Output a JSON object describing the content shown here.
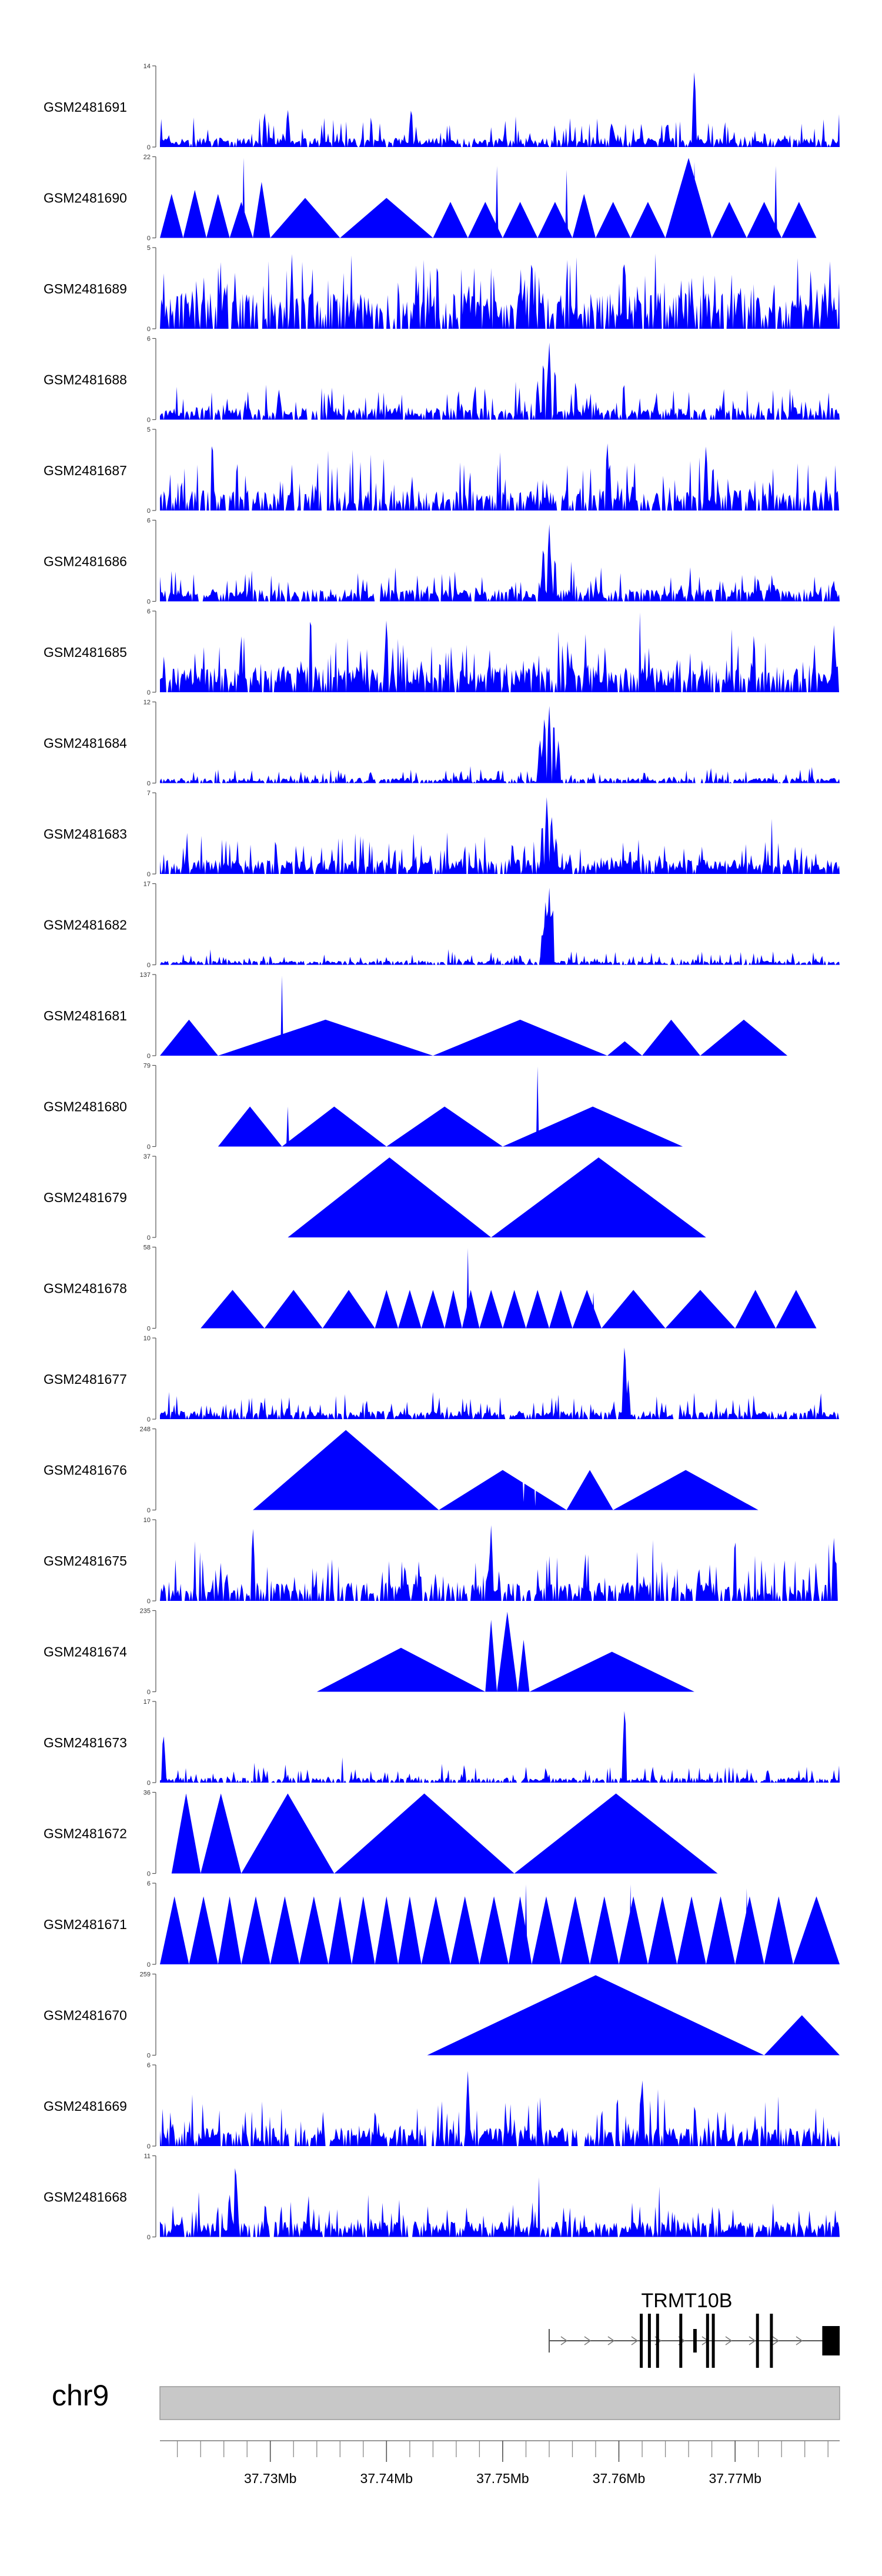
{
  "chart_data": {
    "type": "area",
    "title": "",
    "region": {
      "chromosome": "chr9",
      "start": 37.7205,
      "end": 37.779,
      "unit": "Mb"
    },
    "axis": {
      "ticks": [
        37.73,
        37.74,
        37.75,
        37.76,
        37.77
      ],
      "tick_labels": [
        "37.73Mb",
        "37.74Mb",
        "37.75Mb",
        "37.76Mb",
        "37.77Mb"
      ],
      "minor_step": 0.002
    },
    "tracks": [
      {
        "name": "GSM2481691",
        "ymax": 14,
        "ymax_label": "14",
        "ymin_label": "0",
        "style": "noise",
        "base": 0.09,
        "amp": 0.3,
        "density": 0.85,
        "peaks": [
          [
            37.7665,
            1.0
          ],
          [
            37.7295,
            0.45
          ],
          [
            37.7315,
            0.5
          ]
        ]
      },
      {
        "name": "GSM2481690",
        "ymax": 22,
        "ymax_label": "22",
        "ymin_label": "0",
        "style": "tri",
        "segments": [
          [
            37.7205,
            37.7225,
            0.55
          ],
          [
            37.7225,
            37.7245,
            0.6
          ],
          [
            37.7245,
            37.7265,
            0.55
          ],
          [
            37.7265,
            37.7285,
            0.45
          ],
          [
            37.7285,
            37.73,
            0.7
          ],
          [
            37.73,
            37.736,
            0.5
          ],
          [
            37.736,
            37.744,
            0.5
          ],
          [
            37.744,
            37.747,
            0.45
          ],
          [
            37.747,
            37.75,
            0.45
          ],
          [
            37.75,
            37.753,
            0.45
          ],
          [
            37.753,
            37.756,
            0.45
          ],
          [
            37.756,
            37.758,
            0.55
          ],
          [
            37.758,
            37.761,
            0.45
          ],
          [
            37.761,
            37.764,
            0.45
          ],
          [
            37.764,
            37.768,
            1.0
          ],
          [
            37.768,
            37.771,
            0.45
          ],
          [
            37.771,
            37.774,
            0.45
          ],
          [
            37.774,
            37.777,
            0.45
          ]
        ],
        "spikes": [
          [
            37.7277,
            1.0
          ],
          [
            37.7495,
            0.9
          ],
          [
            37.7555,
            0.85
          ],
          [
            37.7665,
            0.95
          ],
          [
            37.7735,
            0.9
          ]
        ]
      },
      {
        "name": "GSM2481689",
        "ymax": 5,
        "ymax_label": "5",
        "ymin_label": "0",
        "style": "noise",
        "base": 0.35,
        "amp": 0.55,
        "density": 0.75,
        "peaks": [
          [
            37.7525,
            0.95
          ],
          [
            37.7605,
            0.9
          ]
        ]
      },
      {
        "name": "GSM2481688",
        "ymax": 6,
        "ymax_label": "6",
        "ymin_label": "0",
        "style": "noise",
        "base": 0.12,
        "amp": 0.32,
        "density": 0.8,
        "peaks": [
          [
            37.754,
            1.0
          ],
          [
            37.7535,
            0.8
          ],
          [
            37.7545,
            0.7
          ],
          [
            37.753,
            0.5
          ]
        ]
      },
      {
        "name": "GSM2481687",
        "ymax": 5,
        "ymax_label": "5",
        "ymin_label": "0",
        "style": "noise",
        "base": 0.2,
        "amp": 0.5,
        "density": 0.7,
        "peaks": [
          [
            37.725,
            0.95
          ],
          [
            37.759,
            0.9
          ],
          [
            37.7675,
            0.85
          ]
        ]
      },
      {
        "name": "GSM2481686",
        "ymax": 6,
        "ymax_label": "6",
        "ymin_label": "0",
        "style": "noise",
        "base": 0.12,
        "amp": 0.3,
        "density": 0.8,
        "peaks": [
          [
            37.754,
            1.0
          ],
          [
            37.7535,
            0.75
          ],
          [
            37.7545,
            0.6
          ]
        ]
      },
      {
        "name": "GSM2481685",
        "ymax": 6,
        "ymax_label": "6",
        "ymin_label": "0",
        "style": "noise",
        "base": 0.25,
        "amp": 0.5,
        "density": 0.8,
        "peaks": [
          [
            37.74,
            0.95
          ],
          [
            37.7785,
            0.85
          ]
        ]
      },
      {
        "name": "GSM2481684",
        "ymax": 12,
        "ymax_label": "12",
        "ymin_label": "0",
        "style": "noise",
        "base": 0.05,
        "amp": 0.15,
        "density": 0.8,
        "peaks": [
          [
            37.754,
            1.0
          ],
          [
            37.7536,
            0.9
          ],
          [
            37.7544,
            0.85
          ],
          [
            37.7532,
            0.6
          ],
          [
            37.7548,
            0.55
          ]
        ]
      },
      {
        "name": "GSM2481683",
        "ymax": 7,
        "ymax_label": "7",
        "ymin_label": "0",
        "style": "noise",
        "base": 0.14,
        "amp": 0.35,
        "density": 0.85,
        "peaks": [
          [
            37.7538,
            1.0
          ],
          [
            37.7542,
            0.8
          ],
          [
            37.7534,
            0.7
          ],
          [
            37.7546,
            0.5
          ]
        ]
      },
      {
        "name": "GSM2481682",
        "ymax": 17,
        "ymax_label": "17",
        "ymin_label": "0",
        "style": "noise",
        "base": 0.04,
        "amp": 0.12,
        "density": 0.8,
        "peaks": [
          [
            37.754,
            1.0
          ],
          [
            37.7537,
            0.85
          ],
          [
            37.7543,
            0.8
          ],
          [
            37.7534,
            0.45
          ]
        ]
      },
      {
        "name": "GSM2481681",
        "ymax": 137,
        "ymax_label": "137",
        "ymin_label": "0",
        "style": "tri",
        "segments": [
          [
            37.7205,
            37.7255,
            0.45
          ],
          [
            37.7255,
            37.744,
            0.45
          ],
          [
            37.744,
            37.759,
            0.45
          ],
          [
            37.759,
            37.762,
            0.18
          ],
          [
            37.762,
            37.767,
            0.45
          ],
          [
            37.767,
            37.7745,
            0.45
          ]
        ],
        "spikes": [
          [
            37.731,
            1.0
          ]
        ]
      },
      {
        "name": "GSM2481680",
        "ymax": 79,
        "ymax_label": "79",
        "ymin_label": "0",
        "style": "tri",
        "segments": [
          [
            37.7255,
            37.731,
            0.5
          ],
          [
            37.731,
            37.74,
            0.5
          ],
          [
            37.74,
            37.75,
            0.5
          ],
          [
            37.75,
            37.7655,
            0.5
          ]
        ],
        "spikes": [
          [
            37.7315,
            0.5
          ],
          [
            37.753,
            1.0
          ]
        ],
        "notches": [
          [
            37.731,
            0.1
          ]
        ]
      },
      {
        "name": "GSM2481679",
        "ymax": 37,
        "ymax_label": "37",
        "ymin_label": "0",
        "style": "tri",
        "segments": [
          [
            37.7315,
            37.749,
            1.0
          ],
          [
            37.749,
            37.7675,
            1.0
          ]
        ]
      },
      {
        "name": "GSM2481678",
        "ymax": 58,
        "ymax_label": "58",
        "ymin_label": "0",
        "style": "tri",
        "segments": [
          [
            37.724,
            37.7295,
            0.48
          ],
          [
            37.7295,
            37.7345,
            0.48
          ],
          [
            37.7345,
            37.739,
            0.48
          ],
          [
            37.739,
            37.741,
            0.48
          ],
          [
            37.741,
            37.743,
            0.48
          ],
          [
            37.743,
            37.745,
            0.48
          ],
          [
            37.745,
            37.7465,
            0.48
          ],
          [
            37.7465,
            37.748,
            0.48
          ],
          [
            37.748,
            37.75,
            0.48
          ],
          [
            37.75,
            37.752,
            0.48
          ],
          [
            37.752,
            37.754,
            0.48
          ],
          [
            37.754,
            37.756,
            0.48
          ],
          [
            37.756,
            37.7585,
            0.48
          ],
          [
            37.7585,
            37.764,
            0.48
          ],
          [
            37.764,
            37.77,
            0.48
          ],
          [
            37.77,
            37.7735,
            0.48
          ],
          [
            37.7735,
            37.777,
            0.48
          ]
        ],
        "spikes": [
          [
            37.747,
            1.0
          ],
          [
            37.7578,
            0.45
          ]
        ]
      },
      {
        "name": "GSM2481677",
        "ymax": 10,
        "ymax_label": "10",
        "ymin_label": "0",
        "style": "noise",
        "base": 0.08,
        "amp": 0.25,
        "density": 0.85,
        "peaks": [
          [
            37.7605,
            1.0
          ],
          [
            37.7608,
            0.5
          ]
        ]
      },
      {
        "name": "GSM2481676",
        "ymax": 248,
        "ymax_label": "248",
        "ymin_label": "0",
        "style": "tri",
        "segments": [
          [
            37.7285,
            37.7445,
            1.0
          ],
          [
            37.7445,
            37.7555,
            0.5
          ],
          [
            37.7555,
            37.7595,
            0.5
          ],
          [
            37.7595,
            37.772,
            0.5
          ]
        ],
        "notches": [
          [
            37.7518,
            0.1
          ],
          [
            37.7528,
            0.05
          ]
        ]
      },
      {
        "name": "GSM2481675",
        "ymax": 10,
        "ymax_label": "10",
        "ymin_label": "0",
        "style": "noise",
        "base": 0.18,
        "amp": 0.45,
        "density": 0.7,
        "peaks": [
          [
            37.7285,
            0.95
          ],
          [
            37.749,
            0.95
          ],
          [
            37.77,
            0.85
          ],
          [
            37.7785,
            0.8
          ]
        ]
      },
      {
        "name": "GSM2481674",
        "ymax": 235,
        "ymax_label": "235",
        "ymin_label": "0",
        "style": "tri",
        "segments": [
          [
            37.734,
            37.7485,
            0.55
          ],
          [
            37.7485,
            37.7495,
            0.9
          ],
          [
            37.7495,
            37.7513,
            1.0
          ],
          [
            37.7513,
            37.7523,
            0.65
          ],
          [
            37.7523,
            37.7665,
            0.5
          ]
        ]
      },
      {
        "name": "GSM2481673",
        "ymax": 17,
        "ymax_label": "17",
        "ymin_label": "0",
        "style": "noise",
        "base": 0.05,
        "amp": 0.18,
        "density": 0.75,
        "peaks": [
          [
            37.7605,
            1.0
          ],
          [
            37.7208,
            0.65
          ]
        ]
      },
      {
        "name": "GSM2481672",
        "ymax": 36,
        "ymax_label": "36",
        "ymin_label": "0",
        "style": "tri",
        "segments": [
          [
            37.7215,
            37.724,
            1.0
          ],
          [
            37.724,
            37.7275,
            1.0
          ],
          [
            37.7275,
            37.7355,
            1.0
          ],
          [
            37.7355,
            37.751,
            1.0
          ],
          [
            37.751,
            37.7685,
            1.0
          ]
        ]
      },
      {
        "name": "GSM2481671",
        "ymax": 6,
        "ymax_label": "6",
        "ymin_label": "0",
        "style": "tri",
        "segments": [
          [
            37.7205,
            37.723,
            0.85
          ],
          [
            37.723,
            37.7255,
            0.85
          ],
          [
            37.7255,
            37.7275,
            0.85
          ],
          [
            37.7275,
            37.73,
            0.85
          ],
          [
            37.73,
            37.7325,
            0.85
          ],
          [
            37.7325,
            37.735,
            0.85
          ],
          [
            37.735,
            37.737,
            0.85
          ],
          [
            37.737,
            37.739,
            0.85
          ],
          [
            37.739,
            37.741,
            0.85
          ],
          [
            37.741,
            37.743,
            0.85
          ],
          [
            37.743,
            37.7455,
            0.85
          ],
          [
            37.7455,
            37.748,
            0.85
          ],
          [
            37.748,
            37.7505,
            0.85
          ],
          [
            37.7505,
            37.7525,
            0.85
          ],
          [
            37.7525,
            37.755,
            0.85
          ],
          [
            37.755,
            37.7575,
            0.85
          ],
          [
            37.7575,
            37.76,
            0.85
          ],
          [
            37.76,
            37.7625,
            0.85
          ],
          [
            37.7625,
            37.765,
            0.85
          ],
          [
            37.765,
            37.7675,
            0.85
          ],
          [
            37.7675,
            37.77,
            0.85
          ],
          [
            37.77,
            37.7725,
            0.85
          ],
          [
            37.7725,
            37.775,
            0.85
          ],
          [
            37.775,
            37.779,
            0.85
          ]
        ],
        "spikes": [
          [
            37.752,
            1.0
          ],
          [
            37.761,
            1.0
          ],
          [
            37.771,
            0.95
          ]
        ]
      },
      {
        "name": "GSM2481670",
        "ymax": 259,
        "ymax_label": "259",
        "ymin_label": "0",
        "style": "tri",
        "segments": [
          [
            37.7435,
            37.7725,
            1.0
          ],
          [
            37.7725,
            37.779,
            0.5
          ]
        ]
      },
      {
        "name": "GSM2481669",
        "ymax": 6,
        "ymax_label": "6",
        "ymin_label": "0",
        "style": "noise",
        "base": 0.18,
        "amp": 0.42,
        "density": 0.75,
        "peaks": [
          [
            37.747,
            0.95
          ],
          [
            37.762,
            0.9
          ]
        ]
      },
      {
        "name": "GSM2481668",
        "ymax": 11,
        "ymax_label": "11",
        "ymin_label": "0",
        "style": "noise",
        "base": 0.15,
        "amp": 0.38,
        "density": 0.8,
        "peaks": [
          [
            37.727,
            1.0
          ],
          [
            37.7265,
            0.55
          ]
        ]
      }
    ],
    "gene": {
      "name": "TRMT10B",
      "strand": "+",
      "start": 37.754,
      "end": 37.779,
      "exons": [
        [
          37.7618,
          37.762
        ],
        [
          37.7625,
          37.7627
        ],
        [
          37.7632,
          37.7634
        ],
        [
          37.7652,
          37.7654
        ],
        [
          37.7664,
          37.7667
        ],
        [
          37.7675,
          37.7677
        ],
        [
          37.768,
          37.7682
        ],
        [
          37.7718,
          37.772
        ],
        [
          37.773,
          37.7732
        ],
        [
          37.7775,
          37.779
        ]
      ]
    },
    "ideogram": {
      "label": "chr9",
      "color": "#c8c8c8"
    },
    "fill_color": "#0000ff"
  }
}
